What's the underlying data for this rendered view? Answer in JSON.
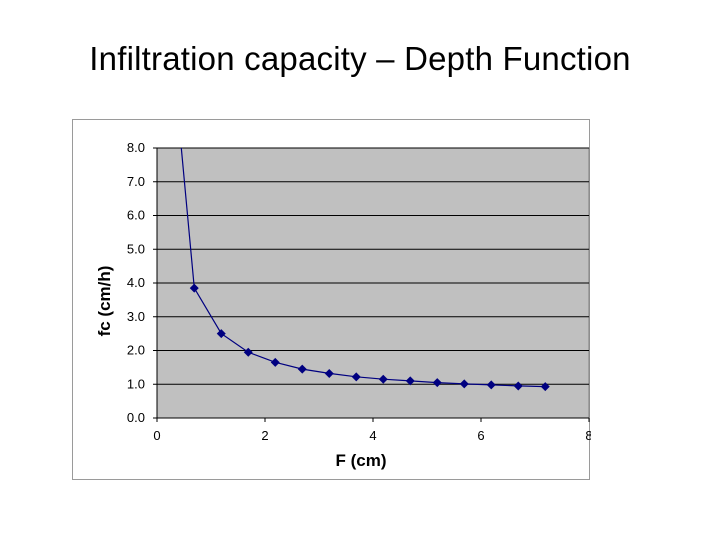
{
  "slide": {
    "title": "Infiltration capacity – Depth Function"
  },
  "chart_data": {
    "type": "line",
    "xlabel": "F (cm)",
    "ylabel": "fc (cm/h)",
    "xlim": [
      0,
      8
    ],
    "ylim": [
      0,
      8
    ],
    "x_ticks": [
      "0",
      "2",
      "4",
      "6",
      "8"
    ],
    "y_ticks": [
      "0.0",
      "1.0",
      "2.0",
      "3.0",
      "4.0",
      "5.0",
      "6.0",
      "7.0",
      "8.0"
    ],
    "grid": true,
    "legend": "none",
    "colors": {
      "plot_bg": "#c0c0c0",
      "line": "#000080",
      "grid": "#000000"
    },
    "series": [
      {
        "marker": "diamond",
        "x": [
          0.45,
          0.69,
          1.19,
          1.69,
          2.19,
          2.69,
          3.19,
          3.69,
          4.19,
          4.69,
          5.19,
          5.69,
          6.19,
          6.69,
          7.19
        ],
        "y": [
          8.0,
          3.85,
          2.5,
          1.95,
          1.65,
          1.45,
          1.32,
          1.22,
          1.15,
          1.1,
          1.05,
          1.01,
          0.98,
          0.95,
          0.93
        ]
      }
    ]
  }
}
